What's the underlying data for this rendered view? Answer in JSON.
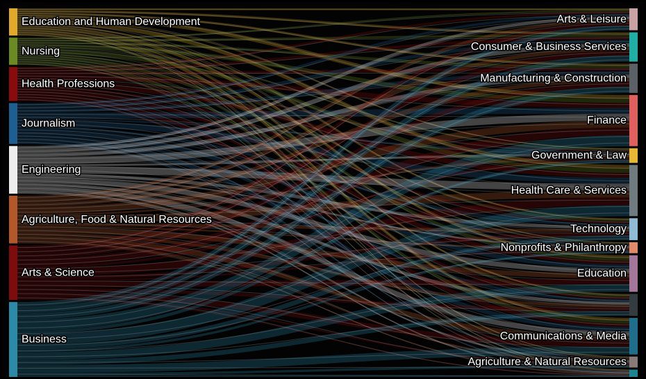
{
  "diagram": {
    "type": "sankey",
    "background": "#030303",
    "border_color": "#000000",
    "sources": [
      {
        "label": "Education and Human Development",
        "color": "#e0a928",
        "weight": 4
      },
      {
        "label": "Nursing",
        "color": "#6b8a22",
        "weight": 4
      },
      {
        "label": "Health Professions",
        "color": "#8a0b0b",
        "weight": 5
      },
      {
        "label": "Journalism",
        "color": "#1e5f91",
        "weight": 6
      },
      {
        "label": "Engineering",
        "color": "#eeeeee",
        "weight": 7
      },
      {
        "label": "Agriculture, Food & Natural Resources",
        "color": "#b4582a",
        "weight": 7
      },
      {
        "label": "Arts & Science",
        "color": "#7f0c0c",
        "weight": 8
      },
      {
        "label": "Business",
        "color": "#2b8aa8",
        "weight": 11
      }
    ],
    "targets": [
      {
        "label": "Arts & Leisure",
        "color": "#c9a3a3",
        "weight": 3
      },
      {
        "label": "Consumer & Business Services",
        "color": "#1fb0a5",
        "weight": 4
      },
      {
        "label": "Manufacturing & Construction",
        "color": "#5b6164",
        "weight": 4
      },
      {
        "label": "Finance",
        "color": "#e06060",
        "weight": 7
      },
      {
        "label": "Government & Law",
        "color": "#e6b833",
        "weight": 2
      },
      {
        "label": "Health Care & Services",
        "color": "#6f7b7f",
        "weight": 7
      },
      {
        "label": "Technology",
        "color": "#8fbbd5",
        "weight": 3
      },
      {
        "label": "Nonprofits & Philanthropy",
        "color": "#e38a6a",
        "weight": 1.5
      },
      {
        "label": "Education",
        "color": "#a3779a",
        "weight": 5
      },
      {
        "label": "",
        "color": "#353c3f",
        "weight": 3
      },
      {
        "label": "Communications & Media",
        "color": "#1f6f8c",
        "weight": 5
      },
      {
        "label": "Agriculture & Natural Resources",
        "color": "#8a7a77",
        "weight": 1.5
      },
      {
        "label": "",
        "color": "#1c8790",
        "weight": 1
      }
    ]
  }
}
